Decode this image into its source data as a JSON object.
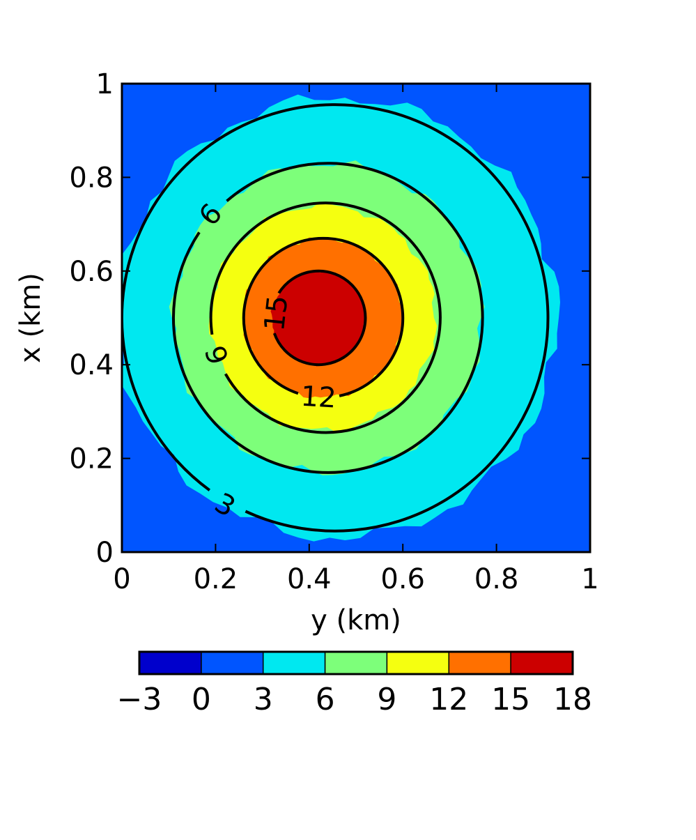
{
  "chart_data": {
    "type": "contourf",
    "title": "",
    "xlabel": "y (km)",
    "ylabel": "x (km)",
    "xlim": [
      0,
      1
    ],
    "ylim": [
      0,
      1
    ],
    "x_ticks": [
      0,
      0.2,
      0.4,
      0.6,
      0.8,
      1
    ],
    "y_ticks": [
      0,
      0.2,
      0.4,
      0.6,
      0.8,
      1
    ],
    "x_tick_labels": [
      "0",
      "0.2",
      "0.4",
      "0.6",
      "0.8",
      "1"
    ],
    "y_tick_labels": [
      "0",
      "0.2",
      "0.4",
      "0.6",
      "0.8",
      "1"
    ],
    "field": {
      "center_y_km": 0.43,
      "center_x_km": 0.5,
      "filled_levels": [
        -3,
        0,
        3,
        6,
        9,
        12,
        15,
        18
      ],
      "level_colors": [
        "#0000cc",
        "#0055ff",
        "#00e8f0",
        "#7dff7a",
        "#f5ff10",
        "#ff7000",
        "#cc0000"
      ],
      "background_color": "#0055ff",
      "filled_regions": [
        {
          "level_min": 0,
          "level_max": 3,
          "color": "#0055ff",
          "center": [
            0.43,
            0.5
          ],
          "radius_km": 1.0
        },
        {
          "level_min": 3,
          "level_max": 6,
          "color": "#00e8f0",
          "center": [
            0.46,
            0.5
          ],
          "radius_km": 0.47
        },
        {
          "level_min": 6,
          "level_max": 9,
          "color": "#7dff7a",
          "center": [
            0.44,
            0.5
          ],
          "radius_km": 0.33
        },
        {
          "level_min": 9,
          "level_max": 12,
          "color": "#f5ff10",
          "center": [
            0.43,
            0.5
          ],
          "radius_km": 0.24
        },
        {
          "level_min": 12,
          "level_max": 15,
          "color": "#ff7000",
          "center": [
            0.43,
            0.5
          ],
          "radius_km": 0.17
        },
        {
          "level_min": 15,
          "level_max": 18,
          "color": "#cc0000",
          "center": [
            0.42,
            0.5
          ],
          "radius_km": 0.1
        }
      ]
    },
    "contour_lines": [
      {
        "level": 3,
        "center": [
          0.455,
          0.5
        ],
        "radius_km": 0.455,
        "label": "3",
        "label_at": [
          0.22,
          0.1
        ]
      },
      {
        "level": 6,
        "center": [
          0.44,
          0.5
        ],
        "radius_km": 0.33,
        "label": "6",
        "label_at": [
          0.19,
          0.72
        ]
      },
      {
        "level": 9,
        "center": [
          0.435,
          0.5
        ],
        "radius_km": 0.245,
        "label": "9",
        "label_at": [
          0.2,
          0.42
        ]
      },
      {
        "level": 12,
        "center": [
          0.43,
          0.5
        ],
        "radius_km": 0.17,
        "label": "12",
        "label_at": [
          0.42,
          0.33
        ]
      },
      {
        "level": 15,
        "center": [
          0.42,
          0.5
        ],
        "radius_km": 0.1,
        "label": "15",
        "label_at": [
          0.33,
          0.51
        ]
      }
    ],
    "colorbar": {
      "orientation": "horizontal",
      "position": "bottom",
      "ticks": [
        -3,
        0,
        3,
        6,
        9,
        12,
        15,
        18
      ],
      "tick_labels": [
        "−3",
        "0",
        "3",
        "6",
        "9",
        "12",
        "15",
        "18"
      ]
    }
  }
}
